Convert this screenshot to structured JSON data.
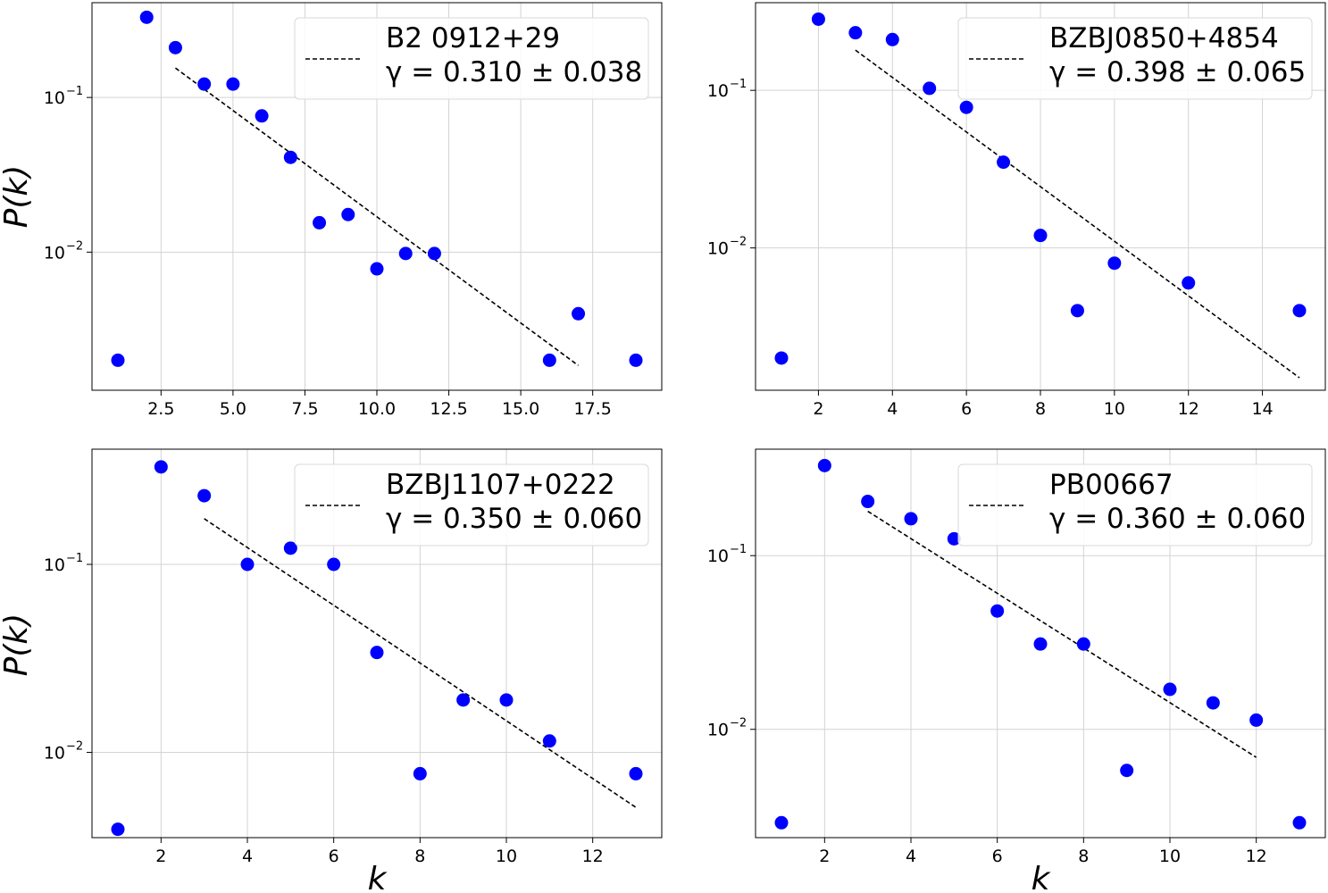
{
  "chart_data": [
    {
      "type": "scatter",
      "ylog": true,
      "xlim": [
        0.1,
        19.9
      ],
      "ylim": [
        0.00128,
        0.41
      ],
      "xticks": [
        2.5,
        5.0,
        7.5,
        10.0,
        12.5,
        15.0,
        17.5
      ],
      "xtick_labels": [
        "2.5",
        "5.0",
        "7.5",
        "10.0",
        "12.5",
        "15.0",
        "17.5"
      ],
      "yticks": [
        0.1,
        0.01
      ],
      "ytick_labels": [
        {
          "base": "10",
          "exp": "−1"
        },
        {
          "base": "10",
          "exp": "−2"
        }
      ],
      "xlabel": "",
      "ylabel": "P(k)",
      "grid": true,
      "legend_position": "upper-right",
      "legend_name": "B2 0912+29",
      "legend_fit": "γ = 0.310 ± 0.038",
      "points_x": [
        1,
        2,
        3,
        4,
        5,
        6,
        7,
        8,
        9,
        10,
        11,
        12,
        16,
        17,
        19
      ],
      "points_y": [
        0.002,
        0.33,
        0.21,
        0.122,
        0.122,
        0.076,
        0.041,
        0.0155,
        0.0175,
        0.0078,
        0.0098,
        0.0098,
        0.002,
        0.004,
        0.002
      ],
      "fit_x": [
        3,
        17
      ],
      "fit_y": [
        0.155,
        0.00185
      ],
      "marker_color": "#0000ff",
      "fit_color": "#000000"
    },
    {
      "type": "scatter",
      "ylog": true,
      "xlim": [
        0.3,
        15.7
      ],
      "ylim": [
        0.00125,
        0.36
      ],
      "xticks": [
        2,
        4,
        6,
        8,
        10,
        12,
        14
      ],
      "xtick_labels": [
        "2",
        "4",
        "6",
        "8",
        "10",
        "12",
        "14"
      ],
      "yticks": [
        0.1,
        0.01
      ],
      "ytick_labels": [
        {
          "base": "10",
          "exp": "−1"
        },
        {
          "base": "10",
          "exp": "−2"
        }
      ],
      "xlabel": "",
      "ylabel": "",
      "grid": true,
      "legend_position": "upper-right",
      "legend_name": "BZBJ0850+4854",
      "legend_fit": "γ = 0.398 ± 0.065",
      "points_x": [
        1,
        2,
        3,
        4,
        5,
        6,
        7,
        8,
        9,
        10,
        12,
        15
      ],
      "points_y": [
        0.002,
        0.283,
        0.232,
        0.21,
        0.103,
        0.078,
        0.035,
        0.012,
        0.004,
        0.008,
        0.006,
        0.004
      ],
      "fit_x": [
        3,
        15
      ],
      "fit_y": [
        0.18,
        0.0015
      ],
      "marker_color": "#0000ff",
      "fit_color": "#000000"
    },
    {
      "type": "scatter",
      "ylog": true,
      "xlim": [
        0.4,
        13.6
      ],
      "ylim": [
        0.00352,
        0.41
      ],
      "xticks": [
        2,
        4,
        6,
        8,
        10,
        12
      ],
      "xtick_labels": [
        "2",
        "4",
        "6",
        "8",
        "10",
        "12"
      ],
      "yticks": [
        0.1,
        0.01
      ],
      "ytick_labels": [
        {
          "base": "10",
          "exp": "−1"
        },
        {
          "base": "10",
          "exp": "−2"
        }
      ],
      "xlabel": "k",
      "ylabel": "P(k)",
      "grid": true,
      "legend_position": "upper-right",
      "legend_name": "BZBJ1107+0222",
      "legend_fit": "γ = 0.350 ± 0.060",
      "points_x": [
        1,
        2,
        3,
        4,
        5,
        6,
        7,
        8,
        9,
        10,
        11,
        13
      ],
      "points_y": [
        0.0039,
        0.33,
        0.232,
        0.1,
        0.122,
        0.1,
        0.034,
        0.0077,
        0.019,
        0.019,
        0.0115,
        0.0077
      ],
      "fit_x": [
        3,
        13
      ],
      "fit_y": [
        0.175,
        0.0051
      ],
      "marker_color": "#0000ff",
      "fit_color": "#000000"
    },
    {
      "type": "scatter",
      "ylog": true,
      "xlim": [
        0.4,
        13.6
      ],
      "ylim": [
        0.00238,
        0.41
      ],
      "xticks": [
        2,
        4,
        6,
        8,
        10,
        12
      ],
      "xtick_labels": [
        "2",
        "4",
        "6",
        "8",
        "10",
        "12"
      ],
      "yticks": [
        0.1,
        0.01
      ],
      "ytick_labels": [
        {
          "base": "10",
          "exp": "−1"
        },
        {
          "base": "10",
          "exp": "−2"
        }
      ],
      "xlabel": "k",
      "ylabel": "",
      "grid": true,
      "legend_position": "upper-right",
      "legend_name": "PB00667",
      "legend_fit": "γ = 0.360 ± 0.060",
      "points_x": [
        1,
        2,
        3,
        4,
        5,
        6,
        7,
        8,
        9,
        10,
        11,
        12,
        13
      ],
      "points_y": [
        0.0029,
        0.33,
        0.205,
        0.163,
        0.125,
        0.048,
        0.031,
        0.031,
        0.0058,
        0.017,
        0.0142,
        0.0113,
        0.0029
      ],
      "fit_x": [
        3,
        12
      ],
      "fit_y": [
        0.18,
        0.0069
      ],
      "marker_color": "#0000ff",
      "fit_color": "#000000"
    }
  ]
}
